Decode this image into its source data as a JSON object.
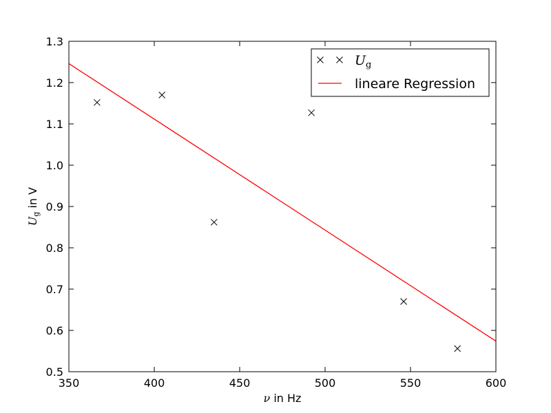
{
  "chart_data": {
    "type": "scatter",
    "title": "",
    "xlabel": {
      "symbol": "ν",
      "text": " in Hz"
    },
    "ylabel": {
      "symbol": "U",
      "subscript": "g",
      "text": " in V"
    },
    "xlim": [
      350,
      600
    ],
    "ylim": [
      0.5,
      1.3
    ],
    "xticks": [
      350,
      400,
      450,
      500,
      550,
      600
    ],
    "xtick_labels": [
      "350",
      "400",
      "450",
      "500",
      "550",
      "600"
    ],
    "yticks": [
      0.5,
      0.6,
      0.7,
      0.8,
      0.9,
      1.0,
      1.1,
      1.2,
      1.3
    ],
    "ytick_labels": [
      "0.5",
      "0.6",
      "0.7",
      "0.8",
      "0.9",
      "1.0",
      "1.1",
      "1.2",
      "1.3"
    ],
    "grid": false,
    "legend_position": "top-right",
    "series": [
      {
        "name": {
          "symbol": "U",
          "subscript": "g"
        },
        "kind": "scatter",
        "marker": "x",
        "color": "#000000",
        "x": [
          366.5,
          404.5,
          435,
          492,
          546,
          577.5
        ],
        "y": [
          1.152,
          1.17,
          0.862,
          1.127,
          0.67,
          0.556
        ]
      },
      {
        "name": "lineare Regression",
        "kind": "line",
        "color": "#ff0000",
        "x": [
          350,
          600
        ],
        "y": [
          1.246,
          0.574
        ]
      }
    ]
  }
}
